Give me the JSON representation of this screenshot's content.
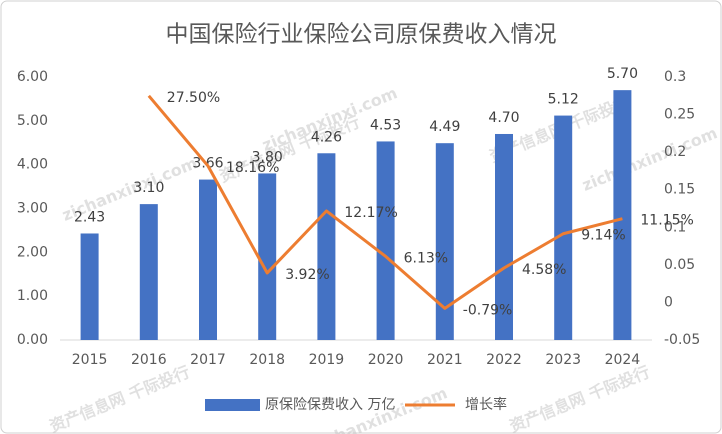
{
  "chart_data": {
    "type": "bar-line",
    "title": "中国保险行业保险公司原保费收入情况",
    "categories": [
      "2015",
      "2016",
      "2017",
      "2018",
      "2019",
      "2020",
      "2021",
      "2022",
      "2023",
      "2024"
    ],
    "series": [
      {
        "name": "原保险保费收入 万亿",
        "type": "bar",
        "color": "#4472c4",
        "values": [
          2.43,
          3.1,
          3.66,
          3.8,
          4.26,
          4.53,
          4.49,
          4.7,
          5.12,
          5.7
        ],
        "value_labels": [
          "2.43",
          "3.10",
          "3.66",
          "3.80",
          "4.26",
          "4.53",
          "4.49",
          "4.70",
          "5.12",
          "5.70"
        ]
      },
      {
        "name": "增长率",
        "type": "line",
        "axis": "y2",
        "color": "#ed7d31",
        "values": [
          null,
          0.275,
          0.1816,
          0.0392,
          0.1217,
          0.0613,
          -0.0079,
          0.0458,
          0.0914,
          0.1115
        ],
        "value_labels": [
          null,
          "27.50%",
          "18.16%",
          "3.92%",
          "12.17%",
          "6.13%",
          "-0.79%",
          "4.58%",
          "9.14%",
          "11.15%"
        ]
      }
    ],
    "ylim": [
      0,
      6
    ],
    "yticks": [
      {
        "value": 0,
        "label": "0.00"
      },
      {
        "value": 1,
        "label": "1.00"
      },
      {
        "value": 2,
        "label": "2.00"
      },
      {
        "value": 3,
        "label": "3.00"
      },
      {
        "value": 4,
        "label": "4.00"
      },
      {
        "value": 5,
        "label": "5.00"
      },
      {
        "value": 6,
        "label": "6.00"
      }
    ],
    "y2lim": [
      -0.05,
      0.3
    ],
    "y2ticks": [
      -0.05,
      0,
      0.05,
      0.1,
      0.15,
      0.2,
      0.25,
      0.3
    ],
    "grid": false,
    "legend": "bottom",
    "watermark": [
      "资产信息网 千际投行",
      "zichanxinxi.com"
    ]
  }
}
